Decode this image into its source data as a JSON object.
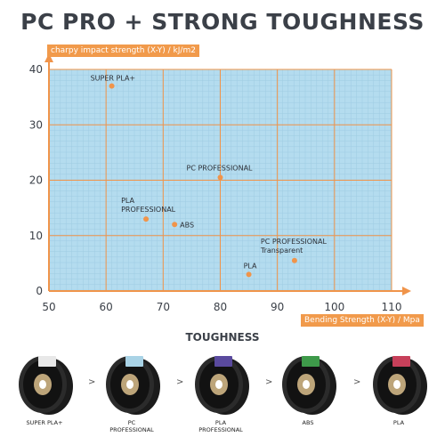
{
  "title": "PC PRO + STRONG TOUGHNESS",
  "section_title": "TOUGHNESS",
  "colors": {
    "plot_bg": "#b4dcef",
    "grid": "#f0944a",
    "axis": "#f0944a",
    "point": "#f0944a",
    "label_box": "#f19a4b"
  },
  "chart_data": {
    "type": "scatter",
    "title": "PC PRO + STRONG TOUGHNESS",
    "xlabel": "Bending Strength (X-Y) / Mpa",
    "ylabel": "charpy impact strength (X-Y) / kJ/m2",
    "xlim": [
      50,
      110
    ],
    "ylim": [
      0,
      40
    ],
    "x_ticks": [
      "50",
      "60",
      "70",
      "80",
      "90",
      "100",
      "110"
    ],
    "y_ticks": [
      "0",
      "10",
      "20",
      "30",
      "40"
    ],
    "grid": true,
    "points": [
      {
        "label": "SUPER PLA+",
        "x": 61,
        "y": 37
      },
      {
        "label": "PC PROFESSIONAL",
        "x": 80,
        "y": 20.5
      },
      {
        "label": "PLA\nPROFESSIONAL",
        "x": 67,
        "y": 13
      },
      {
        "label": "ABS",
        "x": 72,
        "y": 12
      },
      {
        "label": "PC PROFESSIONAL\nTransparent",
        "x": 93,
        "y": 5.5
      },
      {
        "label": "PLA",
        "x": 85,
        "y": 3
      }
    ]
  },
  "products": [
    {
      "label": "SUPER PLA+",
      "accent": "#e8e8e8"
    },
    {
      "label": "PC\nPROFESSIONAL",
      "accent": "#a9d3e6"
    },
    {
      "label": "PLA\nPROFESSIONAL",
      "accent": "#5a4a9e"
    },
    {
      "label": "ABS",
      "accent": "#3e9a4a"
    },
    {
      "label": "PLA",
      "accent": "#c7405a"
    }
  ],
  "arrow_glyph": ">"
}
